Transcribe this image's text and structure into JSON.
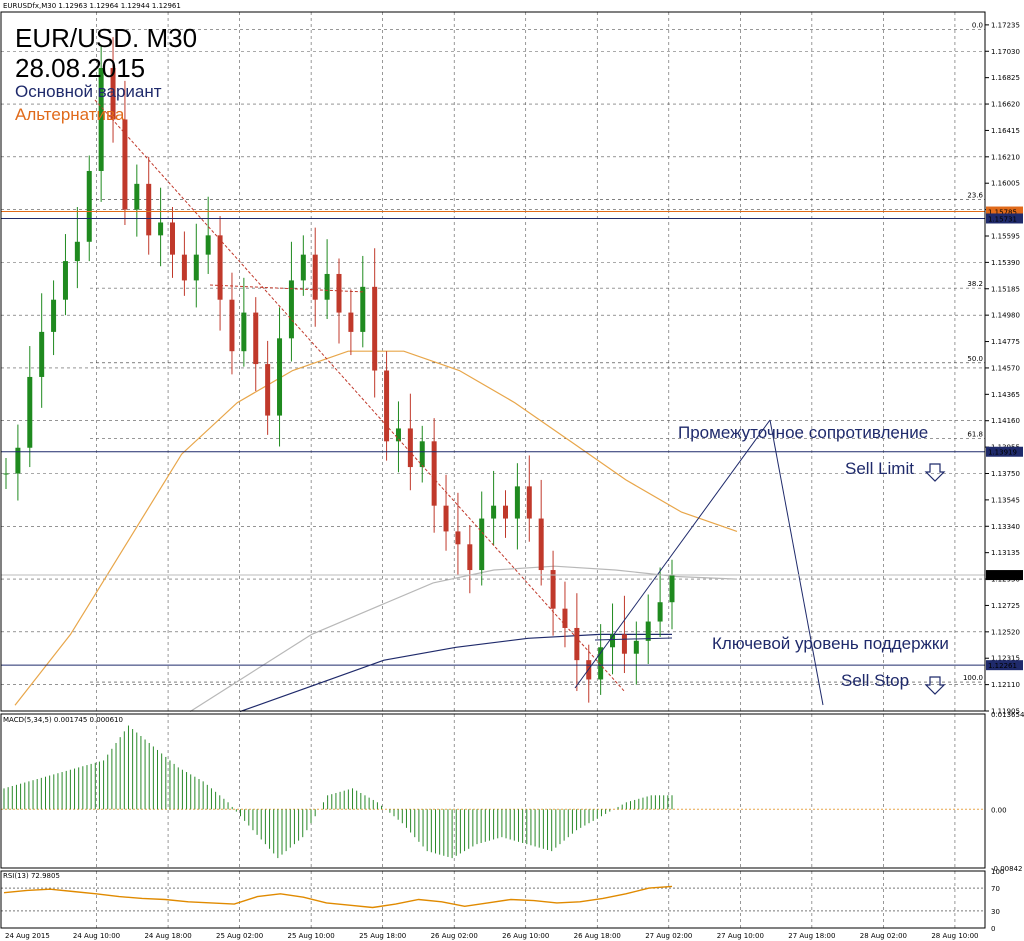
{
  "header": {
    "symbol_line": "EURUSDfx,M30  1.12963 1.12964 1.12944 1.12961",
    "title": "EUR/USD. M30",
    "date": "28.08.2015",
    "main_variant": "Основной вариант",
    "alternative": "Альтернатива"
  },
  "annotations": {
    "intermediate_resistance": "Промежуточное сопротивление",
    "sell_limit": "Sell Limit",
    "key_support": "Ключевой уровень поддержки",
    "sell_stop": "Sell Stop"
  },
  "colors": {
    "bull": "#1f8a1f",
    "bear": "#c0392b",
    "ma_slow": "#e8a64a",
    "ma_fast": "#b8b8b8",
    "ma_long": "#1f2a6b",
    "level_orange": "#e06a1a",
    "level_blue": "#1f2a6b",
    "macd_hist": "#2a8a2a",
    "rsi": "#e08a00"
  },
  "chart_data": [
    {
      "type": "candlestick",
      "title": "EURUSDfx,M30",
      "ylim": [
        1.11905,
        1.17335
      ],
      "y_ticks": [
        "1.17235",
        "1.17030",
        "1.16825",
        "1.16620",
        "1.16415",
        "1.16210",
        "1.16005",
        "1.15800",
        "1.15595",
        "1.15390",
        "1.15185",
        "1.14980",
        "1.14775",
        "1.14570",
        "1.14365",
        "1.14160",
        "1.13955",
        "1.13750",
        "1.13545",
        "1.13340",
        "1.13135",
        "1.12930",
        "1.12725",
        "1.12520",
        "1.12315",
        "1.12110",
        "1.11905"
      ],
      "x_labels": [
        "24 Aug 2015",
        "24 Aug 10:00",
        "24 Aug 18:00",
        "25 Aug 02:00",
        "25 Aug 10:00",
        "25 Aug 18:00",
        "26 Aug 02:00",
        "26 Aug 10:00",
        "26 Aug 18:00",
        "27 Aug 02:00",
        "27 Aug 10:00",
        "27 Aug 18:00",
        "28 Aug 02:00",
        "28 Aug 10:00"
      ],
      "price_tags": [
        {
          "label": "1.15785",
          "value": 1.15785,
          "color": "#e06a1a"
        },
        {
          "label": "1.15731",
          "value": 1.15731,
          "color": "#1f2a6b"
        },
        {
          "label": "1.13919",
          "value": 1.13919,
          "color": "#1f2a6b"
        },
        {
          "label": "1.12961",
          "value": 1.12961,
          "color": "#000000"
        },
        {
          "label": "1.12261",
          "value": 1.12261,
          "color": "#1f2a6b"
        }
      ],
      "fibonacci": [
        {
          "label": "0.0",
          "value": 1.172
        },
        {
          "label": "23.6",
          "value": 1.1588
        },
        {
          "label": "38.2",
          "value": 1.1519
        },
        {
          "label": "50.0",
          "value": 1.1461
        },
        {
          "label": "61.8",
          "value": 1.1402
        },
        {
          "label": "100.0",
          "value": 1.1213
        }
      ],
      "close_path": [
        1.1375,
        1.1395,
        1.145,
        1.1485,
        1.151,
        1.154,
        1.1555,
        1.161,
        1.169,
        1.165,
        1.158,
        1.16,
        1.156,
        1.157,
        1.1545,
        1.1525,
        1.1545,
        1.156,
        1.151,
        1.147,
        1.15,
        1.146,
        1.142,
        1.148,
        1.1525,
        1.1545,
        1.151,
        1.153,
        1.15,
        1.1485,
        1.152,
        1.1455,
        1.14,
        1.141,
        1.138,
        1.14,
        1.135,
        1.133,
        1.132,
        1.13,
        1.134,
        1.135,
        1.134,
        1.1365,
        1.134,
        1.13,
        1.127,
        1.1255,
        1.123,
        1.1215,
        1.124,
        1.125,
        1.1235,
        1.1245,
        1.126,
        1.1275,
        1.1296
      ],
      "ma_slow": [
        1.1195,
        1.125,
        1.132,
        1.139,
        1.143,
        1.1455,
        1.147,
        1.147,
        1.1455,
        1.143,
        1.14,
        1.137,
        1.1345,
        1.133
      ],
      "ma_fast": [
        1.119,
        1.122,
        1.125,
        1.127,
        1.129,
        1.13,
        1.1303,
        1.13,
        1.1295,
        1.1293
      ],
      "ma_long": [
        1.119,
        1.121,
        1.123,
        1.124,
        1.1247,
        1.125,
        1.125
      ]
    },
    {
      "type": "bar",
      "title": "MACD(5,34,5) 0.001745 0.000610",
      "ylim": [
        -0.00842,
        0.013654
      ],
      "y_ticks": [
        "0.013654",
        "0.00",
        "-0.00842"
      ],
      "values": [
        0.003,
        0.004,
        0.005,
        0.006,
        0.007,
        0.012,
        0.009,
        0.006,
        0.004,
        0.001,
        -0.003,
        -0.007,
        -0.004,
        0.002,
        0.003,
        0.001,
        -0.002,
        -0.006,
        -0.007,
        -0.005,
        -0.004,
        -0.005,
        -0.006,
        -0.003,
        -0.001,
        0.001,
        0.002
      ]
    },
    {
      "type": "line",
      "title": "RSI(13) 72.9805",
      "ylim": [
        0,
        100
      ],
      "y_ticks": [
        "100",
        "70",
        "30",
        "0"
      ],
      "values": [
        62,
        66,
        68,
        64,
        60,
        55,
        52,
        50,
        46,
        44,
        42,
        55,
        60,
        54,
        44,
        40,
        36,
        42,
        50,
        46,
        38,
        44,
        50,
        48,
        44,
        46,
        52,
        60,
        70,
        73
      ]
    }
  ]
}
